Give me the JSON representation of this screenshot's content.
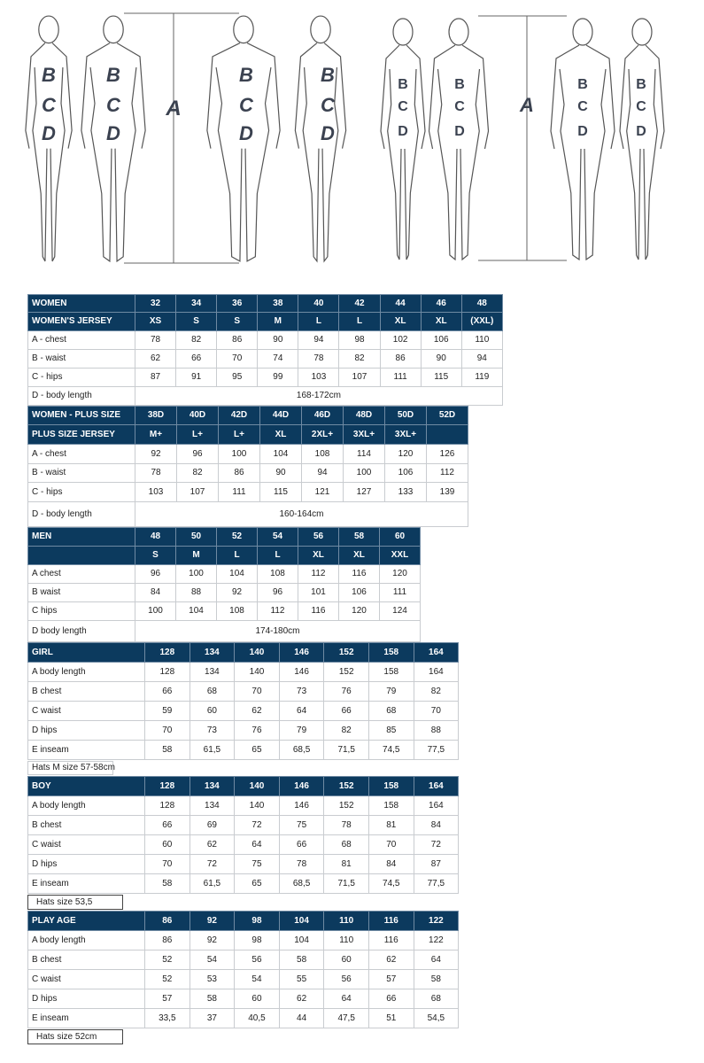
{
  "figures": {
    "adults_letters": [
      "A",
      "B",
      "C",
      "D"
    ],
    "kids_letters": [
      "A",
      "B",
      "C",
      "D"
    ]
  },
  "tables": [
    {
      "id": "women",
      "header_rows": [
        [
          "WOMEN",
          "32",
          "34",
          "36",
          "38",
          "40",
          "42",
          "44",
          "46",
          "48"
        ],
        [
          "WOMEN'S JERSEY",
          "XS",
          "S",
          "S",
          "M",
          "L",
          "L",
          "XL",
          "XL",
          "(XXL)"
        ]
      ],
      "rows": [
        [
          "A - chest",
          "78",
          "82",
          "86",
          "90",
          "94",
          "98",
          "102",
          "106",
          "110"
        ],
        [
          "B - waist",
          "62",
          "66",
          "70",
          "74",
          "78",
          "82",
          "86",
          "90",
          "94"
        ],
        [
          "C - hips",
          "87",
          "91",
          "95",
          "99",
          "103",
          "107",
          "111",
          "115",
          "119"
        ]
      ],
      "span_row": [
        "D - body length",
        "168-172cm"
      ]
    },
    {
      "id": "women-plus",
      "header_rows": [
        [
          "WOMEN - PLUS SIZE",
          "38D",
          "40D",
          "42D",
          "44D",
          "46D",
          "48D",
          "50D",
          "52D"
        ],
        [
          "PLUS SIZE JERSEY",
          "M+",
          "L+",
          "L+",
          "XL",
          "2XL+",
          "3XL+",
          "3XL+",
          ""
        ]
      ],
      "rows": [
        [
          "A - chest",
          "92",
          "96",
          "100",
          "104",
          "108",
          "114",
          "120",
          "126"
        ],
        [
          "B - waist",
          "78",
          "82",
          "86",
          "90",
          "94",
          "100",
          "106",
          "112"
        ],
        [
          "C - hips",
          "103",
          "107",
          "111",
          "115",
          "121",
          "127",
          "133",
          "139"
        ]
      ],
      "span_row": [
        "D - body length",
        "160-164cm"
      ]
    },
    {
      "id": "men",
      "header_rows": [
        [
          "MEN",
          "48",
          "50",
          "52",
          "54",
          "56",
          "58",
          "60"
        ],
        [
          "",
          "S",
          "M",
          "L",
          "L",
          "XL",
          "XL",
          "XXL"
        ]
      ],
      "rows": [
        [
          "A chest",
          "96",
          "100",
          "104",
          "108",
          "112",
          "116",
          "120"
        ],
        [
          "B waist",
          "84",
          "88",
          "92",
          "96",
          "101",
          "106",
          "111"
        ],
        [
          "C hips",
          "100",
          "104",
          "108",
          "112",
          "116",
          "120",
          "124"
        ]
      ],
      "span_row": [
        "D body length",
        "174-180cm"
      ]
    },
    {
      "id": "girl",
      "header_rows": [
        [
          "GIRL",
          "128",
          "134",
          "140",
          "146",
          "152",
          "158",
          "164"
        ]
      ],
      "rows": [
        [
          "A body length",
          "128",
          "134",
          "140",
          "146",
          "152",
          "158",
          "164"
        ],
        [
          "B chest",
          "66",
          "68",
          "70",
          "73",
          "76",
          "79",
          "82"
        ],
        [
          "C waist",
          "59",
          "60",
          "62",
          "64",
          "66",
          "68",
          "70"
        ],
        [
          "D hips",
          "70",
          "73",
          "76",
          "79",
          "82",
          "85",
          "88"
        ],
        [
          "E inseam",
          "58",
          "61,5",
          "65",
          "68,5",
          "71,5",
          "74,5",
          "77,5"
        ]
      ],
      "note": "Hats M size 57-58cm"
    },
    {
      "id": "boy",
      "header_rows": [
        [
          "BOY",
          "128",
          "134",
          "140",
          "146",
          "152",
          "158",
          "164"
        ]
      ],
      "rows": [
        [
          "A body length",
          "128",
          "134",
          "140",
          "146",
          "152",
          "158",
          "164"
        ],
        [
          "B chest",
          "66",
          "69",
          "72",
          "75",
          "78",
          "81",
          "84"
        ],
        [
          "C waist",
          "60",
          "62",
          "64",
          "66",
          "68",
          "70",
          "72"
        ],
        [
          "D hips",
          "70",
          "72",
          "75",
          "78",
          "81",
          "84",
          "87"
        ],
        [
          "E inseam",
          "58",
          "61,5",
          "65",
          "68,5",
          "71,5",
          "74,5",
          "77,5"
        ]
      ],
      "note": "Hats size 53,5"
    },
    {
      "id": "play-age",
      "header_rows": [
        [
          "PLAY AGE",
          "86",
          "92",
          "98",
          "104",
          "110",
          "116",
          "122"
        ]
      ],
      "rows": [
        [
          "A body length",
          "86",
          "92",
          "98",
          "104",
          "110",
          "116",
          "122"
        ],
        [
          "B chest",
          "52",
          "54",
          "56",
          "58",
          "60",
          "62",
          "64"
        ],
        [
          "C waist",
          "52",
          "53",
          "54",
          "55",
          "56",
          "57",
          "58"
        ],
        [
          "D hips",
          "57",
          "58",
          "60",
          "62",
          "64",
          "66",
          "68"
        ],
        [
          "E inseam",
          "33,5",
          "37",
          "40,5",
          "44",
          "47,5",
          "51",
          "54,5"
        ]
      ],
      "note": "Hats size 52cm"
    }
  ],
  "colors": {
    "header_bg": "#0c3a5e",
    "header_text": "#ffffff",
    "letter": "#3b4250"
  }
}
